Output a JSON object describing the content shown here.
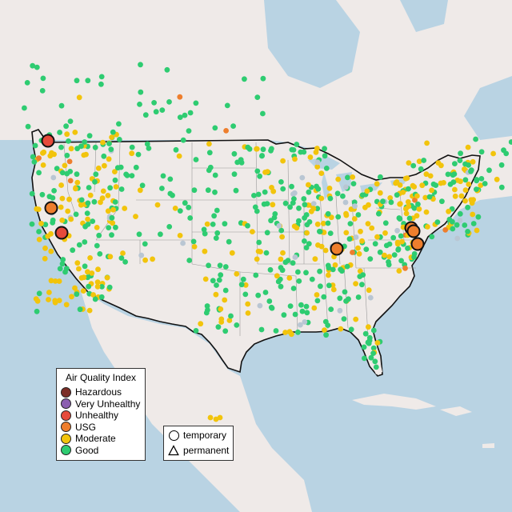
{
  "map": {
    "colors": {
      "ocean": "#b9d3e3",
      "land": "#efeae8",
      "hazardous": "#7b2d26",
      "very_unhealthy": "#8b5fb0",
      "unhealthy": "#e64a3b",
      "usg": "#ee7e2d",
      "moderate": "#f2c40c",
      "good": "#2ecc71",
      "no_data": "#b9c6d3"
    }
  },
  "legend": {
    "title": "Air Quality Index",
    "categories": [
      {
        "label": "Hazardous",
        "color": "#7b2d26"
      },
      {
        "label": "Very Unhealthy",
        "color": "#8b5fb0"
      },
      {
        "label": "Unhealthy",
        "color": "#e64a3b"
      },
      {
        "label": "USG",
        "color": "#ee7e2d"
      },
      {
        "label": "Moderate",
        "color": "#f2c40c"
      },
      {
        "label": "Good",
        "color": "#2ecc71"
      }
    ]
  },
  "site_legend": {
    "temporary": "temporary",
    "permanent": "permanent"
  }
}
